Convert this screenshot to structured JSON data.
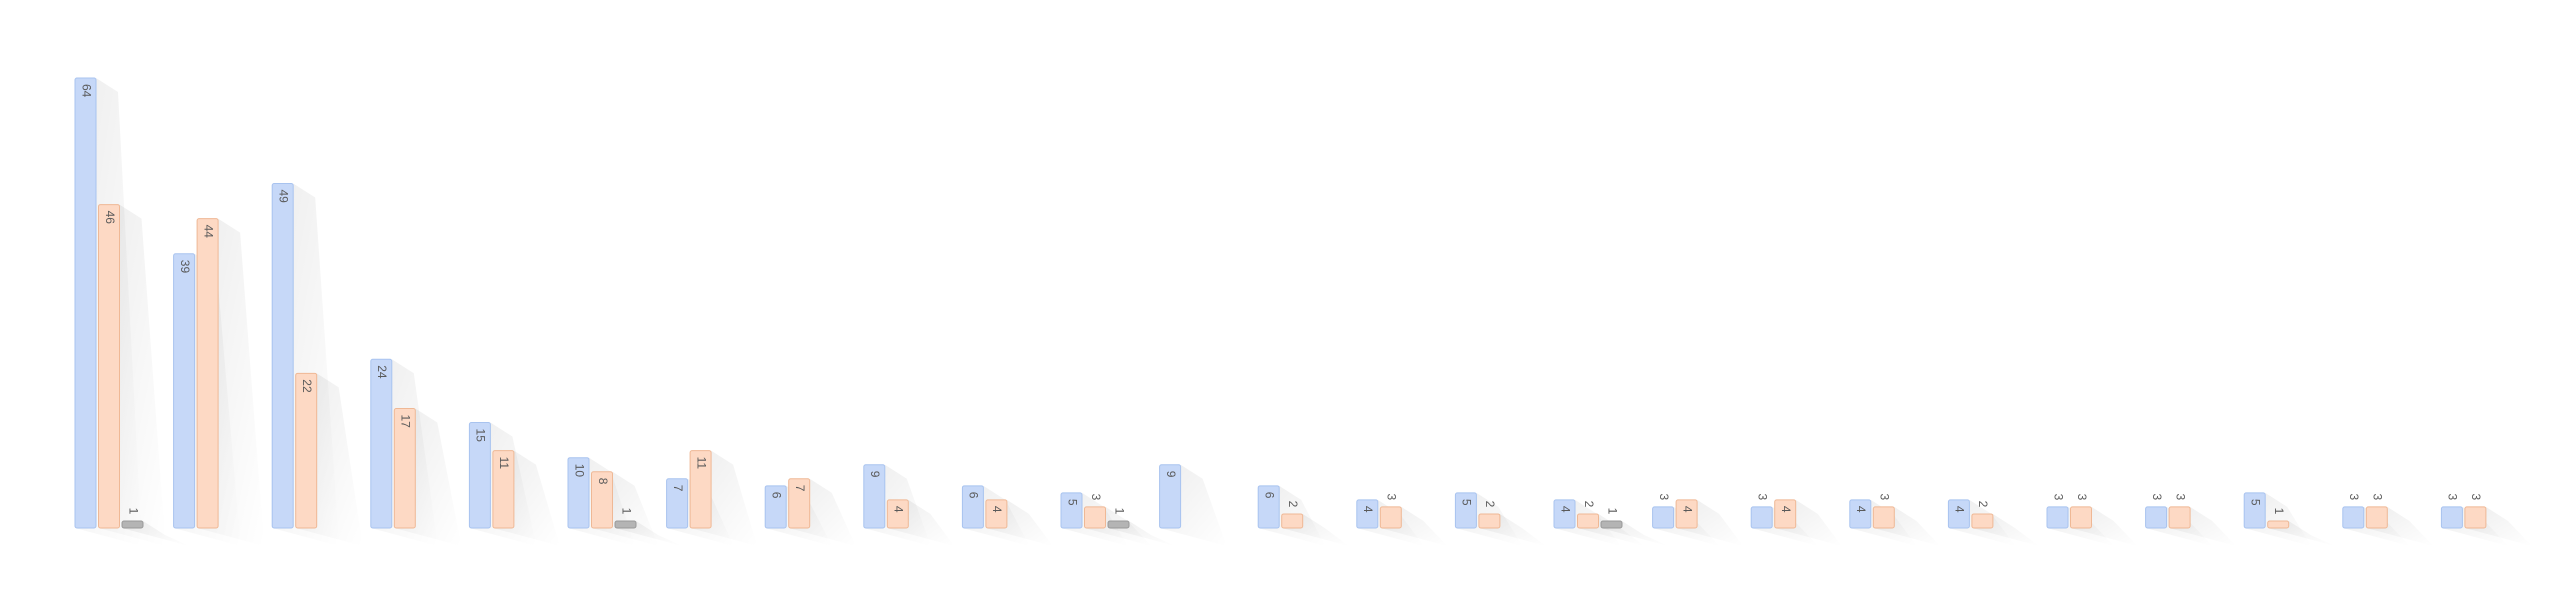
{
  "chart_data": {
    "type": "bar",
    "categories": [
      null,
      null,
      null,
      null,
      null,
      null,
      null,
      null,
      null,
      null,
      null,
      null,
      null,
      null,
      null,
      null,
      null,
      null,
      null,
      null,
      null,
      null,
      null,
      null,
      null
    ],
    "series": [
      {
        "color": "#c6d8f8",
        "values": [
          64,
          39,
          49,
          24,
          15,
          10,
          7,
          6,
          9,
          6,
          5,
          9,
          6,
          4,
          5,
          4,
          3,
          3,
          4,
          4,
          3,
          3,
          5,
          3,
          3
        ]
      },
      {
        "color": "#fdd9c4",
        "values": [
          46,
          44,
          22,
          17,
          11,
          8,
          11,
          7,
          4,
          4,
          3,
          null,
          2,
          3,
          2,
          2,
          4,
          4,
          3,
          2,
          3,
          3,
          1,
          3,
          3
        ]
      },
      {
        "color": "#b4b4b4",
        "values": [
          1,
          null,
          null,
          null,
          null,
          1,
          null,
          null,
          null,
          null,
          1,
          null,
          null,
          null,
          null,
          1,
          null,
          null,
          null,
          null,
          null,
          null,
          null,
          null,
          null
        ]
      }
    ]
  }
}
